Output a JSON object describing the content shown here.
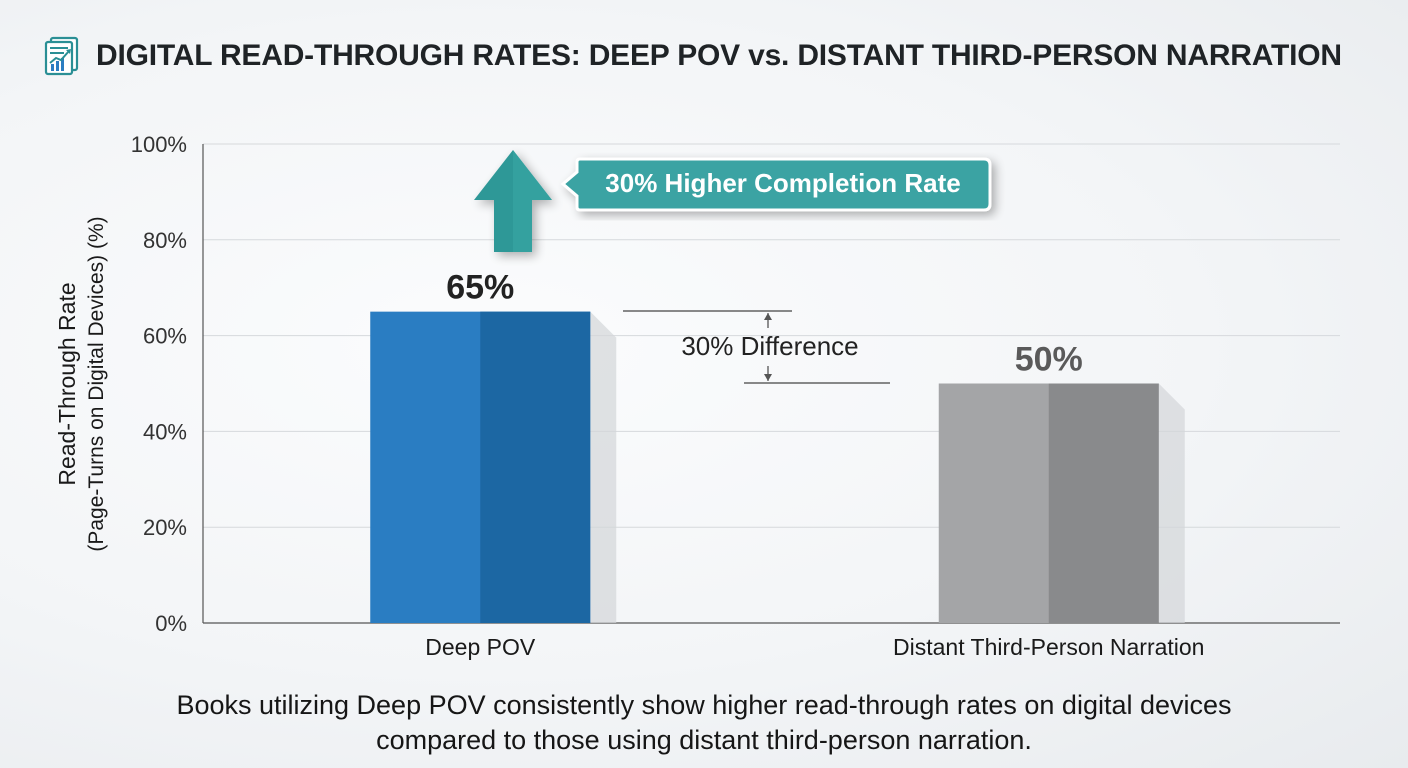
{
  "header": {
    "title": "DIGITAL READ-THROUGH RATES: DEEP POV vs. DISTANT THIRD-PERSON NARRATION",
    "icon": "report-chart-icon"
  },
  "chart_data": {
    "type": "bar",
    "title": "DIGITAL READ-THROUGH RATES: DEEP POV vs. DISTANT THIRD-PERSON NARRATION",
    "categories": [
      "Deep POV",
      "Distant Third-Person Narration"
    ],
    "values": [
      65,
      50
    ],
    "data_labels": [
      "65%",
      "50%"
    ],
    "ylabel_line1": "Read-Through Rate",
    "ylabel_line2": "(Page-Turns on Digital Devices) (%)",
    "xlabel": "",
    "ylim": [
      0,
      100
    ],
    "yticks": [
      0,
      20,
      40,
      60,
      80,
      100
    ],
    "ytick_labels": [
      "0%",
      "20%",
      "40%",
      "60%",
      "80%",
      "100%"
    ],
    "grid": true,
    "colors": [
      "#2a7dc2",
      "#a4a5a7"
    ],
    "shade_colors": [
      "#1c67a3",
      "#898a8c"
    ],
    "annotations": {
      "difference_label": "30% Difference",
      "callout_label": "30% Higher Completion Rate",
      "callout_color": "#3aa3a3",
      "arrow_color": "#2e9897"
    }
  },
  "caption": {
    "line1": "Books utilizing Deep POV consistently show higher read-through rates on digital devices",
    "line2": "compared to those using distant third-person narration."
  }
}
